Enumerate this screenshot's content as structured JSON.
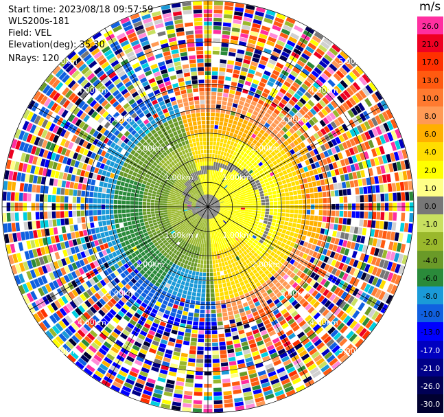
{
  "header": {
    "start_time": "Start time: 2023/08/18 09:57:59",
    "instrument": "WLS200s-181",
    "field": "Field: VEL",
    "elevation": "Elevation(deg): 35.30",
    "nrays": "NRays: 120"
  },
  "colorbar": {
    "unit": "m/s",
    "levels": [
      {
        "label": "26.0",
        "color": "#ff2fa0"
      },
      {
        "label": "21.0",
        "color": "#ee0022"
      },
      {
        "label": "17.0",
        "color": "#ff3000"
      },
      {
        "label": "13.0",
        "color": "#ff5a10"
      },
      {
        "label": "10.0",
        "color": "#ff7a30"
      },
      {
        "label": "8.0",
        "color": "#ff9a55"
      },
      {
        "label": "6.0",
        "color": "#ffb000"
      },
      {
        "label": "4.0",
        "color": "#ffdd00"
      },
      {
        "label": "2.0",
        "color": "#ffff00"
      },
      {
        "label": "1.0",
        "color": "#ffff88"
      },
      {
        "label": "0.0",
        "color": "#777777"
      },
      {
        "label": "-1.0",
        "color": "#c8e060"
      },
      {
        "label": "-2.0",
        "color": "#9ab82c"
      },
      {
        "label": "-4.0",
        "color": "#6a9a28"
      },
      {
        "label": "-6.0",
        "color": "#2a8a3a"
      },
      {
        "label": "-8.0",
        "color": "#1a9ad8"
      },
      {
        "label": "-10.0",
        "color": "#1060e0"
      },
      {
        "label": "-13.0",
        "color": "#0000ff"
      },
      {
        "label": "-17.0",
        "color": "#0000c0"
      },
      {
        "label": "-21.0",
        "color": "#000088"
      },
      {
        "label": "-26.0",
        "color": "#000055"
      },
      {
        "label": "-30.0",
        "color": "#000030"
      }
    ]
  },
  "ppi": {
    "ring_labels": [
      "1.00km",
      "2.00km",
      "3.00km",
      "4.00km",
      "5.00km"
    ],
    "ring_fractions": [
      0.2,
      0.4,
      0.6,
      0.8,
      1.0
    ],
    "spoke_angles_deg": [
      0,
      30,
      60,
      90,
      120,
      150,
      180,
      210,
      240,
      270,
      300,
      330
    ],
    "colors": {
      "ring": "#000000",
      "label": "#ffffff"
    }
  }
}
